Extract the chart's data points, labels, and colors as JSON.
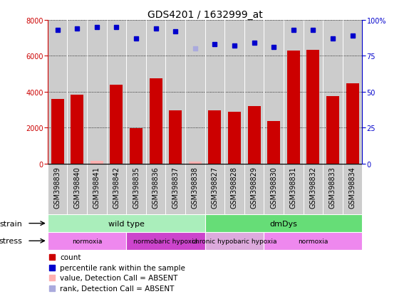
{
  "title": "GDS4201 / 1632999_at",
  "samples": [
    "GSM398839",
    "GSM398840",
    "GSM398841",
    "GSM398842",
    "GSM398835",
    "GSM398836",
    "GSM398837",
    "GSM398838",
    "GSM398827",
    "GSM398828",
    "GSM398829",
    "GSM398830",
    "GSM398831",
    "GSM398832",
    "GSM398833",
    "GSM398834"
  ],
  "counts": [
    3600,
    3820,
    130,
    4380,
    1980,
    4750,
    2950,
    90,
    2980,
    2870,
    3180,
    2380,
    6300,
    6320,
    3770,
    4450
  ],
  "percentile_ranks": [
    93,
    94,
    95,
    95,
    87,
    94,
    92,
    80,
    83,
    82,
    84,
    81,
    93,
    93,
    87,
    89
  ],
  "absent_value_idx": [
    2,
    7
  ],
  "absent_rank_idx": [
    7
  ],
  "ylim_left": [
    0,
    8000
  ],
  "ylim_right": [
    0,
    100
  ],
  "yticks_left": [
    0,
    2000,
    4000,
    6000,
    8000
  ],
  "yticks_right": [
    0,
    25,
    50,
    75,
    100
  ],
  "bar_color": "#CC0000",
  "bar_absent_color": "#FFB0B0",
  "dot_color": "#0000CC",
  "dot_absent_color": "#AAAADD",
  "strain_groups": [
    {
      "label": "wild type",
      "start": 0,
      "end": 8,
      "color": "#AAEEBB"
    },
    {
      "label": "dmDys",
      "start": 8,
      "end": 16,
      "color": "#66DD77"
    }
  ],
  "stress_groups": [
    {
      "label": "normoxia",
      "start": 0,
      "end": 4,
      "color": "#EE88EE"
    },
    {
      "label": "normobaric hypoxia",
      "start": 4,
      "end": 8,
      "color": "#CC44CC"
    },
    {
      "label": "chronic hypobaric hypoxia",
      "start": 8,
      "end": 11,
      "color": "#DDAADD"
    },
    {
      "label": "normoxia",
      "start": 11,
      "end": 16,
      "color": "#EE88EE"
    }
  ],
  "legend_items": [
    {
      "label": "count",
      "color": "#CC0000"
    },
    {
      "label": "percentile rank within the sample",
      "color": "#0000CC"
    },
    {
      "label": "value, Detection Call = ABSENT",
      "color": "#FFB0B0"
    },
    {
      "label": "rank, Detection Call = ABSENT",
      "color": "#AAAADD"
    }
  ],
  "plot_bg": "#CCCCCC",
  "title_fontsize": 10,
  "tick_fontsize": 7,
  "label_fontsize": 8,
  "legend_fontsize": 7.5
}
